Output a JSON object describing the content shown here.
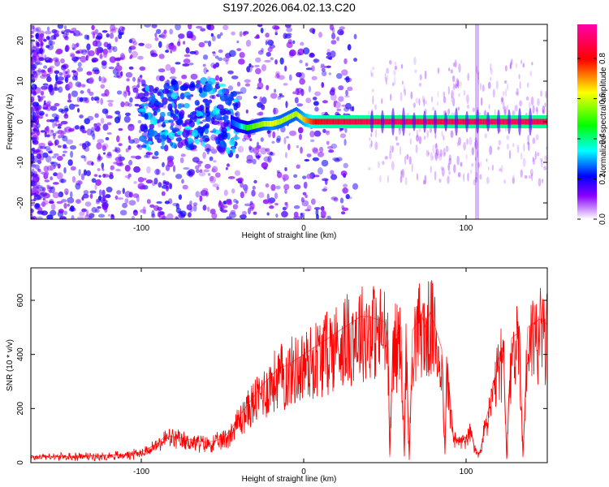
{
  "title": "S197.2026.064.02.13.C20",
  "chart_data": [
    {
      "type": "heatmap",
      "xlabel": "Height of straight line (km)",
      "ylabel": "Frequency (Hz)",
      "xlim": [
        -168,
        150
      ],
      "ylim": [
        -24,
        24
      ],
      "xticks": [
        -100,
        0,
        100
      ],
      "xtick_labels": [
        "-100",
        "0",
        "100"
      ],
      "yticks": [
        -20,
        -10,
        0,
        10,
        20
      ],
      "ytick_labels": [
        "-20",
        "-10",
        "0",
        "10",
        "20"
      ],
      "colorbar": {
        "label": "Normalized spectral amplitude",
        "range": [
          0,
          0.97
        ],
        "ticks": [
          0,
          0.2,
          0.4,
          0.6,
          0.8
        ],
        "tick_labels": [
          "0.0",
          "0.2",
          "0.4",
          "0.6",
          "0.8"
        ],
        "colormap": [
          "#ffffff",
          "#8800ff",
          "#0000ff",
          "#00ffff",
          "#00ff00",
          "#ffff00",
          "#ff0000",
          "#ff00aa"
        ]
      },
      "ridge": {
        "x": [
          -168,
          -130,
          -110,
          -100,
          -90,
          -80,
          -70,
          -60,
          -50,
          -45,
          -40,
          -35,
          -30,
          -25,
          -20,
          -15,
          -10,
          -5,
          0,
          5,
          10,
          20,
          40,
          60,
          80,
          100,
          120,
          150
        ],
        "frequency": [
          0,
          1,
          2,
          1,
          0,
          2,
          1,
          3,
          1,
          0,
          -1,
          -1.5,
          -1,
          -0.5,
          -0.5,
          0,
          1,
          2,
          0.5,
          0,
          0,
          0,
          0,
          0,
          0,
          0,
          0,
          0
        ],
        "amplitude": [
          0.05,
          0.1,
          0.15,
          0.25,
          0.3,
          0.35,
          0.3,
          0.35,
          0.3,
          0.25,
          0.3,
          0.5,
          0.55,
          0.6,
          0.65,
          0.6,
          0.6,
          0.6,
          0.7,
          0.8,
          0.85,
          0.88,
          0.9,
          0.92,
          0.9,
          0.9,
          0.92,
          0.9
        ]
      }
    },
    {
      "type": "line",
      "xlabel": "Height of straight line (km)",
      "ylabel": "SNR (10 * v/v)",
      "xlim": [
        -168,
        150
      ],
      "ylim": [
        0,
        720
      ],
      "xticks": [
        -100,
        0,
        100
      ],
      "xtick_labels": [
        "-100",
        "0",
        "100"
      ],
      "yticks": [
        0,
        200,
        400,
        600
      ],
      "ytick_labels": [
        "0",
        "200",
        "400",
        "600"
      ],
      "color": "#ff0000",
      "series": [
        {
          "x": [
            -168,
            -160,
            -150,
            -140,
            -130,
            -120,
            -110,
            -100,
            -90,
            -85,
            -80,
            -75,
            -70,
            -65,
            -60,
            -55,
            -50,
            -45,
            -40,
            -35,
            -30,
            -25,
            -20,
            -15,
            -10,
            -5,
            0,
            5,
            10,
            15,
            20,
            25,
            30,
            35,
            40,
            45,
            50,
            52,
            53,
            55,
            57,
            60,
            62,
            63,
            65,
            67,
            70,
            72,
            75,
            78,
            80,
            82,
            85,
            87,
            88,
            90,
            92,
            95,
            98,
            100,
            103,
            105,
            108,
            110,
            112,
            115,
            118,
            120,
            123,
            125,
            128,
            130,
            133,
            135,
            138,
            140,
            143,
            145,
            148,
            150
          ],
          "y": [
            20,
            25,
            22,
            24,
            25,
            28,
            30,
            40,
            70,
            100,
            95,
            90,
            85,
            80,
            75,
            80,
            90,
            120,
            170,
            210,
            250,
            290,
            320,
            350,
            360,
            380,
            400,
            420,
            440,
            460,
            480,
            500,
            520,
            540,
            540,
            530,
            520,
            450,
            20,
            480,
            470,
            500,
            25,
            480,
            20,
            490,
            520,
            560,
            500,
            560,
            520,
            480,
            420,
            30,
            350,
            250,
            100,
            80,
            100,
            90,
            120,
            60,
            30,
            80,
            150,
            230,
            300,
            380,
            430,
            20,
            460,
            470,
            480,
            20,
            500,
            510,
            520,
            530,
            520,
            510
          ]
        }
      ]
    }
  ]
}
